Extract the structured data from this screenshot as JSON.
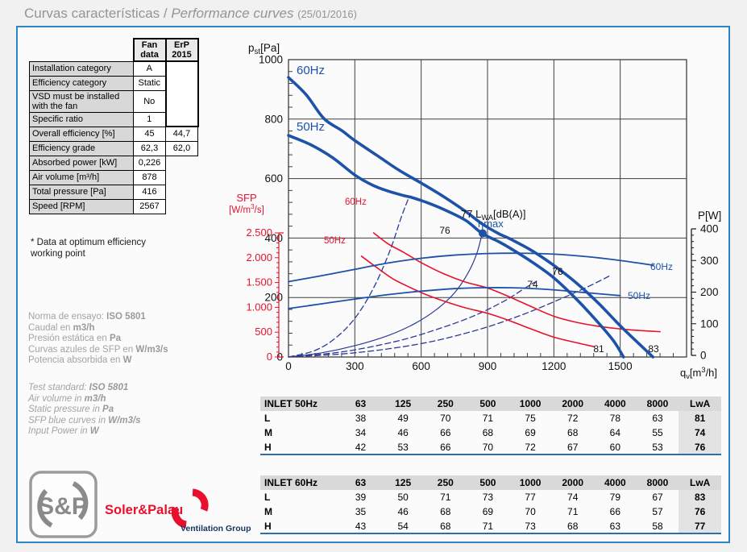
{
  "title": {
    "es": "Curvas características",
    "divider": " / ",
    "en": "Performance curves",
    "date": "(25/01/2016)"
  },
  "fan_table": {
    "col_headers": [
      "Fan data",
      "ErP 2015"
    ],
    "rows": [
      {
        "label": "Installation category",
        "fan": "A",
        "erp": "merged"
      },
      {
        "label": "Efficiency category",
        "fan": "Static",
        "erp": "merged"
      },
      {
        "label": "VSD must be installed with the fan",
        "fan": "No",
        "erp": "merged"
      },
      {
        "label": "Specific ratio",
        "fan": "1",
        "erp": "merged"
      },
      {
        "label": "Overall efficiency [%]",
        "fan": "45",
        "erp": "44,7"
      },
      {
        "label": "Efficiency grade",
        "fan": "62,3",
        "erp": "62,0"
      },
      {
        "label": "Absorbed power [kW]",
        "fan": "0,226",
        "erp": null
      },
      {
        "label": "Air volume [m³/h]",
        "fan": "878",
        "erp": null
      },
      {
        "label": "Total pressure [Pa]",
        "fan": "416",
        "erp": null
      },
      {
        "label": "Speed [RPM]",
        "fan": "2567",
        "erp": null
      }
    ],
    "footnote": "* Data at optimum efficiency working point"
  },
  "notes_es": [
    {
      "text": "Norma de ensayo: ",
      "bold": "ISO 5801"
    },
    {
      "text": "Caudal en ",
      "bold": "m3/h"
    },
    {
      "text": "Presión estática en ",
      "bold": "Pa"
    },
    {
      "text": "Curvas azules de SFP en ",
      "bold": "W/m3/s"
    },
    {
      "text": "Potencia absorbida en ",
      "bold": "W"
    }
  ],
  "notes_en": [
    {
      "text": "Test standard: ",
      "bold": "ISO 5801"
    },
    {
      "text": "Air volume in ",
      "bold": "m3/h"
    },
    {
      "text": "Static pressure in ",
      "bold": "Pa"
    },
    {
      "text": "SFP blue curves in ",
      "bold": "W/m3/s"
    },
    {
      "text": "Input Power in ",
      "bold": "W"
    }
  ],
  "chart_data": {
    "type": "line",
    "xlabel": "qv[m3/h]",
    "ylabel_left": "pst[Pa]",
    "ylabel_right": "P[W]",
    "ylabel_sfp": "SFP [W/m3/s]",
    "x_range": [
      0,
      1800
    ],
    "y_range_pressure": [
      0,
      1000
    ],
    "y_range_sfp": [
      0,
      2500
    ],
    "y_range_power": [
      0,
      400
    ],
    "x_ticks": [
      "0",
      "300",
      "600",
      "900",
      "1200",
      "1500"
    ],
    "y_ticks_pressure": [
      "1000",
      "800",
      "600",
      "400",
      "200",
      "0"
    ],
    "y_ticks_sfp": [
      "2.500",
      "2.000",
      "1.500",
      "1.000",
      "500",
      "0"
    ],
    "y_ticks_power": [
      "400",
      "300",
      "200",
      "100",
      "0"
    ],
    "grid": true,
    "optimum_point": {
      "x": 878,
      "y": 416,
      "label": "ηmax"
    },
    "colors": {
      "blue": "#1d52a8",
      "navy": "#2b3a96",
      "red": "#e8112d",
      "grid": "#3f3f3f"
    },
    "series": [
      {
        "name": "system-steep",
        "axis": "pressure",
        "style": "dashed",
        "color": "#2b3a96",
        "points": [
          [
            0,
            0
          ],
          [
            120,
            22
          ],
          [
            220,
            68
          ],
          [
            310,
            140
          ],
          [
            390,
            240
          ],
          [
            460,
            360
          ],
          [
            510,
            470
          ],
          [
            545,
            538
          ]
        ]
      },
      {
        "name": "eta-line",
        "axis": "pressure",
        "style": "eta",
        "color": "#2b3a96",
        "points": [
          [
            0,
            0
          ],
          [
            150,
            14
          ],
          [
            300,
            38
          ],
          [
            450,
            72
          ],
          [
            570,
            112
          ],
          [
            670,
            160
          ],
          [
            750,
            215
          ],
          [
            810,
            280
          ],
          [
            850,
            345
          ],
          [
            875,
            412
          ]
        ]
      },
      {
        "name": "system-mid",
        "axis": "pressure",
        "style": "dashed",
        "color": "#2b3a96",
        "points": [
          [
            0,
            0
          ],
          [
            250,
            18
          ],
          [
            500,
            55
          ],
          [
            700,
            100
          ],
          [
            850,
            142
          ],
          [
            980,
            190
          ],
          [
            1070,
            232
          ],
          [
            1115,
            252
          ]
        ]
      },
      {
        "name": "system-shallow",
        "axis": "pressure",
        "style": "dashed",
        "color": "#2b3a96",
        "points": [
          [
            0,
            0
          ],
          [
            300,
            14
          ],
          [
            600,
            45
          ],
          [
            850,
            90
          ],
          [
            1050,
            140
          ],
          [
            1220,
            192
          ],
          [
            1350,
            235
          ],
          [
            1450,
            272
          ]
        ]
      },
      {
        "name": "sfp-60Hz",
        "axis": "sfp",
        "style": "sfp",
        "color": "#e8112d",
        "points": [
          [
            385,
            2500
          ],
          [
            450,
            2280
          ],
          [
            520,
            2110
          ],
          [
            600,
            1900
          ],
          [
            700,
            1680
          ],
          [
            800,
            1510
          ],
          [
            900,
            1390
          ],
          [
            1000,
            1210
          ],
          [
            1100,
            1010
          ],
          [
            1200,
            820
          ],
          [
            1300,
            700
          ],
          [
            1400,
            620
          ],
          [
            1500,
            565
          ],
          [
            1600,
            530
          ],
          [
            1680,
            510
          ]
        ]
      },
      {
        "name": "sfp-50Hz",
        "axis": "sfp",
        "style": "sfp",
        "color": "#e8112d",
        "points": [
          [
            330,
            2030
          ],
          [
            400,
            1800
          ],
          [
            470,
            1580
          ],
          [
            550,
            1400
          ],
          [
            620,
            1260
          ],
          [
            700,
            1130
          ],
          [
            800,
            990
          ],
          [
            900,
            880
          ],
          [
            1000,
            730
          ],
          [
            1100,
            560
          ],
          [
            1200,
            400
          ],
          [
            1300,
            290
          ],
          [
            1380,
            210
          ]
        ]
      },
      {
        "name": "power-60Hz",
        "axis": "power",
        "style": "thin",
        "color": "#1d52a8",
        "points": [
          [
            0,
            233
          ],
          [
            150,
            252
          ],
          [
            300,
            272
          ],
          [
            450,
            292
          ],
          [
            600,
            307
          ],
          [
            750,
            317
          ],
          [
            900,
            322
          ],
          [
            1050,
            323
          ],
          [
            1200,
            320
          ],
          [
            1350,
            312
          ],
          [
            1500,
            300
          ],
          [
            1650,
            285
          ]
        ]
      },
      {
        "name": "power-50Hz",
        "axis": "power",
        "style": "thin",
        "color": "#1d52a8",
        "points": [
          [
            0,
            148
          ],
          [
            150,
            163
          ],
          [
            300,
            178
          ],
          [
            450,
            192
          ],
          [
            600,
            203
          ],
          [
            750,
            211
          ],
          [
            900,
            214
          ],
          [
            1050,
            213
          ],
          [
            1200,
            207
          ],
          [
            1350,
            198
          ],
          [
            1500,
            189
          ]
        ]
      },
      {
        "name": "pressure-60Hz",
        "axis": "pressure",
        "style": "thick",
        "color": "#1d52a8",
        "points": [
          [
            0,
            940
          ],
          [
            80,
            882
          ],
          [
            160,
            802
          ],
          [
            240,
            762
          ],
          [
            300,
            728
          ],
          [
            400,
            678
          ],
          [
            500,
            628
          ],
          [
            600,
            585
          ],
          [
            700,
            540
          ],
          [
            800,
            490
          ],
          [
            875,
            448
          ],
          [
            950,
            415
          ],
          [
            1000,
            398
          ],
          [
            1100,
            358
          ],
          [
            1200,
            308
          ],
          [
            1300,
            250
          ],
          [
            1400,
            182
          ],
          [
            1500,
            105
          ],
          [
            1580,
            48
          ],
          [
            1648,
            0
          ]
        ]
      },
      {
        "name": "pressure-50Hz",
        "axis": "pressure",
        "style": "thick",
        "color": "#1d52a8",
        "points": [
          [
            0,
            745
          ],
          [
            100,
            714
          ],
          [
            200,
            670
          ],
          [
            300,
            612
          ],
          [
            380,
            578
          ],
          [
            450,
            558
          ],
          [
            520,
            543
          ],
          [
            560,
            536
          ],
          [
            620,
            521
          ],
          [
            700,
            497
          ],
          [
            800,
            460
          ],
          [
            875,
            416
          ],
          [
            950,
            388
          ],
          [
            1000,
            367
          ],
          [
            1100,
            320
          ],
          [
            1200,
            266
          ],
          [
            1300,
            196
          ],
          [
            1400,
            116
          ],
          [
            1470,
            54
          ],
          [
            1515,
            0
          ]
        ]
      }
    ],
    "annotations": [
      {
        "text": "60Hz",
        "x": 88,
        "y": 52,
        "color": "#1d52a8",
        "size": 15,
        "anchor": "start"
      },
      {
        "text": "50Hz",
        "x": 88,
        "y": 122,
        "color": "#1d52a8",
        "size": 15,
        "anchor": "start"
      },
      {
        "text": "60Hz",
        "x": 148,
        "y": 214,
        "color": "#e8112d",
        "size": 11.5,
        "anchor": "start"
      },
      {
        "text": "50Hz",
        "x": 122,
        "y": 262,
        "color": "#e8112d",
        "size": 11.5,
        "anchor": "start"
      },
      {
        "parts": [
          {
            "t": "77 L"
          },
          {
            "t": "WA",
            "shift": "sub"
          },
          {
            "t": "[dB(A)]"
          }
        ],
        "x": 292,
        "y": 230,
        "color": "#111111",
        "size": 13,
        "anchor": "start"
      },
      {
        "text": "76",
        "x": 272,
        "y": 250,
        "color": "#111111",
        "size": 12,
        "anchor": "middle"
      },
      {
        "text": "ηmax",
        "x": 313,
        "y": 242,
        "color": "#1d52a8",
        "size": 13,
        "anchor": "start"
      },
      {
        "text": "76",
        "x": 412,
        "y": 301,
        "color": "#111111",
        "size": 12,
        "anchor": "middle"
      },
      {
        "text": "74",
        "x": 381,
        "y": 317,
        "color": "#111111",
        "size": 12,
        "anchor": "middle"
      },
      {
        "text": "81",
        "x": 463,
        "y": 397,
        "color": "#111111",
        "size": 12,
        "anchor": "middle"
      },
      {
        "text": "83",
        "x": 531,
        "y": 397,
        "color": "#111111",
        "size": 12,
        "anchor": "middle"
      },
      {
        "text": "60Hz",
        "x": 527,
        "y": 295,
        "color": "#1d52a8",
        "size": 12,
        "anchor": "start"
      },
      {
        "text": "50Hz",
        "x": 499,
        "y": 331,
        "color": "#1d52a8",
        "size": 12,
        "anchor": "start"
      }
    ],
    "axis_titles": {
      "pst": {
        "parts": [
          {
            "t": "p"
          },
          {
            "t": "st",
            "shift": "sub"
          },
          {
            "t": "[Pa]"
          }
        ],
        "x": 28,
        "y": 24,
        "size": 13.5,
        "color": "#111111"
      },
      "pw": {
        "parts": [
          {
            "t": "P[W]"
          }
        ],
        "x": 586,
        "y": 232,
        "size": 13.5,
        "color": "#111111"
      },
      "qv": {
        "parts": [
          {
            "t": "q"
          },
          {
            "t": "v",
            "shift": "sub"
          },
          {
            "t": "[m"
          },
          {
            "t": "3",
            "shift": "sup"
          },
          {
            "t": "/h]"
          }
        ],
        "x": 564,
        "y": 427,
        "size": 13,
        "color": "#111111"
      },
      "sfp1": {
        "parts": [
          {
            "t": "SFP"
          }
        ],
        "x": 26,
        "y": 210,
        "size": 13,
        "color": "#e8112d",
        "anchor": "middle"
      },
      "sfp2": {
        "parts": [
          {
            "t": "[W/m"
          },
          {
            "t": "3",
            "shift": "sup"
          },
          {
            "t": "/s]"
          }
        ],
        "x": 26,
        "y": 224,
        "size": 11.5,
        "color": "#e8112d",
        "anchor": "middle"
      }
    }
  },
  "noise_tables": [
    {
      "title": "INLET 50Hz",
      "freq_headers": [
        "63",
        "125",
        "250",
        "500",
        "1000",
        "2000",
        "4000",
        "8000"
      ],
      "lwa_header": "LwA",
      "rows": [
        {
          "label": "L",
          "values": [
            "38",
            "49",
            "70",
            "71",
            "75",
            "72",
            "78",
            "63"
          ],
          "lwa": "81"
        },
        {
          "label": "M",
          "values": [
            "34",
            "46",
            "66",
            "68",
            "69",
            "68",
            "64",
            "55"
          ],
          "lwa": "74"
        },
        {
          "label": "H",
          "values": [
            "42",
            "53",
            "66",
            "70",
            "72",
            "67",
            "60",
            "53"
          ],
          "lwa": "76"
        }
      ]
    },
    {
      "title": "INLET 60Hz",
      "freq_headers": [
        "63",
        "125",
        "250",
        "500",
        "1000",
        "2000",
        "4000",
        "8000"
      ],
      "lwa_header": "LwA",
      "rows": [
        {
          "label": "L",
          "values": [
            "39",
            "50",
            "71",
            "73",
            "77",
            "74",
            "79",
            "67"
          ],
          "lwa": "83"
        },
        {
          "label": "M",
          "values": [
            "35",
            "46",
            "68",
            "69",
            "70",
            "71",
            "66",
            "57"
          ],
          "lwa": "76"
        },
        {
          "label": "H",
          "values": [
            "43",
            "54",
            "68",
            "71",
            "73",
            "68",
            "63",
            "58"
          ],
          "lwa": "77"
        }
      ]
    }
  ],
  "logo": {
    "monogram": "S&P",
    "brand": "Soler&Palau",
    "group": "Ventilation Group"
  }
}
